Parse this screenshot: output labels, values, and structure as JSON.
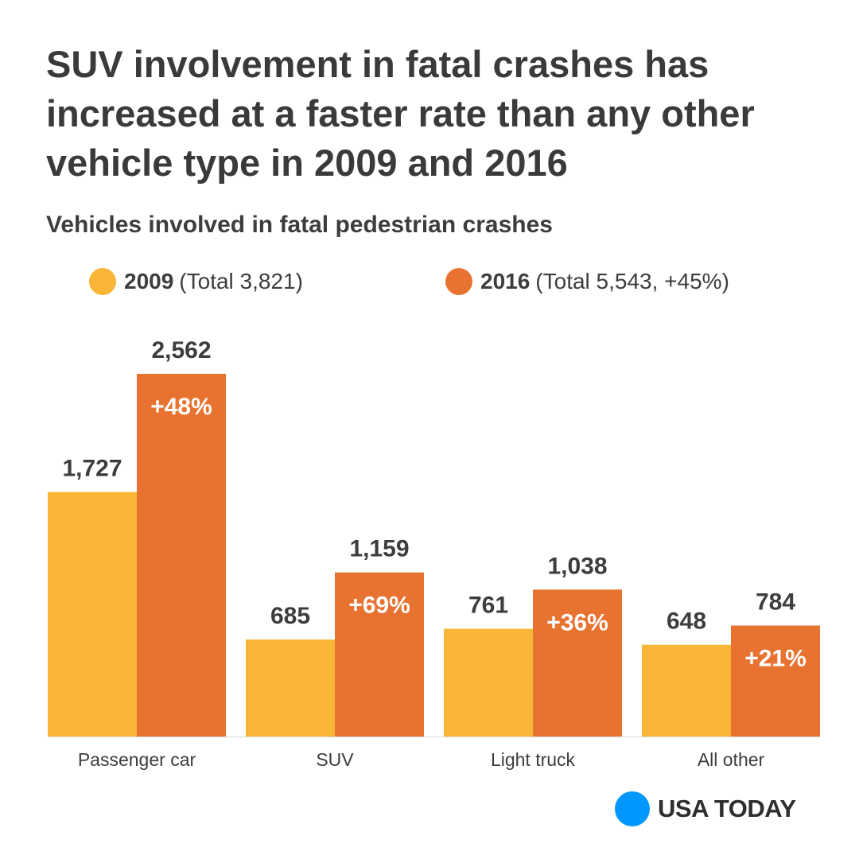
{
  "title": "SUV involvement in fatal crashes has increased at a faster rate than any other vehicle type in 2009 and 2016",
  "subtitle": "Vehicles involved in fatal pedestrian crashes",
  "legend": [
    {
      "year": "2009",
      "detail": "(Total 3,821)",
      "color": "#f8b536"
    },
    {
      "year": "2016",
      "detail": "(Total 5,543, +45%)",
      "color": "#e87331"
    }
  ],
  "chart_data": {
    "type": "bar",
    "title": "SUV involvement in fatal crashes has increased at a faster rate than any other vehicle type in 2009 and 2016",
    "subtitle": "Vehicles involved in fatal pedestrian crashes",
    "categories": [
      "Passenger car",
      "SUV",
      "Light truck",
      "All other"
    ],
    "series": [
      {
        "name": "2009",
        "values": [
          1727,
          685,
          761,
          648
        ],
        "labels": [
          "1,727",
          "685",
          "761",
          "648"
        ],
        "color": "#f8b536"
      },
      {
        "name": "2016",
        "values": [
          2562,
          1159,
          1038,
          784
        ],
        "labels": [
          "2,562",
          "1,159",
          "1,038",
          "784"
        ],
        "color": "#e87331"
      }
    ],
    "change_labels": [
      "+48%",
      "+69%",
      "+36%",
      "+21%"
    ],
    "ylim": [
      0,
      2562
    ],
    "grid": false,
    "legend_position": "top"
  },
  "brand": {
    "name": "USA TODAY",
    "color": "#0098fe"
  }
}
